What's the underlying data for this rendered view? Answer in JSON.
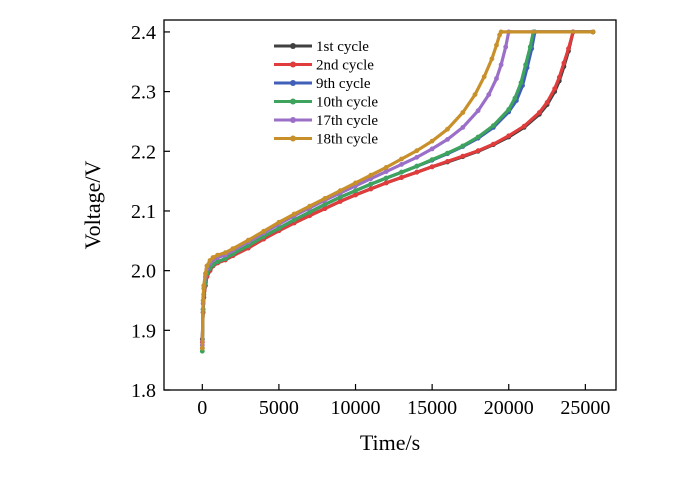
{
  "chart_data": {
    "type": "line",
    "title": "",
    "xlabel": "Time/s",
    "ylabel": "Voltage/V",
    "xlim": [
      -2500,
      27000
    ],
    "ylim": [
      1.8,
      2.42
    ],
    "xticks": [
      0,
      5000,
      10000,
      15000,
      20000,
      25000
    ],
    "xtick_labels": [
      "0",
      "5000",
      "10000",
      "15000",
      "20000",
      "25000"
    ],
    "yticks": [
      1.8,
      1.9,
      2.0,
      2.1,
      2.2,
      2.3,
      2.4
    ],
    "ytick_labels": [
      "1.8",
      "1.9",
      "2.0",
      "2.1",
      "2.2",
      "2.3",
      "2.4"
    ],
    "grid": false,
    "legend_position": "top-center",
    "series": [
      {
        "name": "1st cycle",
        "color": "#404040",
        "x": [
          0,
          50,
          100,
          200,
          300,
          500,
          700,
          1000,
          1500,
          2000,
          3000,
          4000,
          5000,
          6000,
          7000,
          8000,
          9000,
          10000,
          11000,
          12000,
          13000,
          14000,
          15000,
          16000,
          17000,
          18000,
          19000,
          20000,
          21000,
          22000,
          22500,
          23000,
          23300,
          23600,
          23900,
          24200,
          25500
        ],
        "y": [
          1.885,
          1.93,
          1.955,
          1.975,
          1.99,
          2.0,
          2.008,
          2.013,
          2.018,
          2.025,
          2.038,
          2.053,
          2.067,
          2.08,
          2.092,
          2.104,
          2.116,
          2.127,
          2.137,
          2.147,
          2.156,
          2.165,
          2.174,
          2.182,
          2.191,
          2.2,
          2.211,
          2.224,
          2.24,
          2.262,
          2.278,
          2.3,
          2.318,
          2.342,
          2.368,
          2.4,
          2.4
        ]
      },
      {
        "name": "2nd cycle",
        "color": "#e03c3c",
        "x": [
          0,
          50,
          100,
          200,
          300,
          500,
          700,
          1000,
          1500,
          2000,
          3000,
          4000,
          5000,
          6000,
          7000,
          8000,
          9000,
          10000,
          11000,
          12000,
          13000,
          14000,
          15000,
          16000,
          17000,
          18000,
          19000,
          20000,
          21000,
          22000,
          22500,
          23000,
          23300,
          23600,
          23900,
          24200,
          25500
        ],
        "y": [
          1.88,
          1.93,
          1.955,
          1.975,
          1.99,
          2.0,
          2.008,
          2.013,
          2.018,
          2.025,
          2.038,
          2.053,
          2.067,
          2.08,
          2.092,
          2.104,
          2.116,
          2.127,
          2.137,
          2.147,
          2.156,
          2.165,
          2.174,
          2.183,
          2.192,
          2.201,
          2.212,
          2.226,
          2.242,
          2.265,
          2.282,
          2.305,
          2.324,
          2.348,
          2.372,
          2.4,
          2.4
        ]
      },
      {
        "name": "9th cycle",
        "color": "#3f5fb8",
        "x": [
          0,
          50,
          100,
          200,
          300,
          500,
          700,
          1000,
          1500,
          2000,
          3000,
          4000,
          5000,
          6000,
          7000,
          8000,
          9000,
          10000,
          11000,
          12000,
          13000,
          14000,
          15000,
          16000,
          17000,
          18000,
          19000,
          20000,
          20500,
          20900,
          21200,
          21500,
          21700,
          25500
        ],
        "y": [
          1.87,
          1.935,
          1.96,
          1.98,
          1.995,
          2.004,
          2.01,
          2.015,
          2.02,
          2.028,
          2.042,
          2.057,
          2.071,
          2.085,
          2.098,
          2.111,
          2.123,
          2.134,
          2.145,
          2.155,
          2.165,
          2.175,
          2.185,
          2.196,
          2.208,
          2.222,
          2.24,
          2.266,
          2.285,
          2.31,
          2.34,
          2.372,
          2.4,
          2.4
        ]
      },
      {
        "name": "10th cycle",
        "color": "#3da35d",
        "x": [
          0,
          50,
          100,
          200,
          300,
          500,
          700,
          1000,
          1500,
          2000,
          3000,
          4000,
          5000,
          6000,
          7000,
          8000,
          9000,
          10000,
          11000,
          12000,
          13000,
          14000,
          15000,
          16000,
          17000,
          18000,
          19000,
          20000,
          20400,
          20800,
          21100,
          21400,
          21600,
          25500
        ],
        "y": [
          1.865,
          1.935,
          1.96,
          1.98,
          1.995,
          2.004,
          2.01,
          2.015,
          2.02,
          2.028,
          2.042,
          2.057,
          2.071,
          2.085,
          2.098,
          2.111,
          2.123,
          2.134,
          2.145,
          2.155,
          2.165,
          2.175,
          2.186,
          2.197,
          2.209,
          2.224,
          2.243,
          2.27,
          2.289,
          2.315,
          2.345,
          2.375,
          2.4,
          2.4
        ]
      },
      {
        "name": "17th cycle",
        "color": "#9b6fc8",
        "x": [
          0,
          50,
          100,
          200,
          300,
          500,
          700,
          1000,
          1500,
          2000,
          3000,
          4000,
          5000,
          6000,
          7000,
          8000,
          9000,
          10000,
          11000,
          12000,
          13000,
          14000,
          15000,
          16000,
          17000,
          18000,
          18700,
          19200,
          19500,
          19800,
          20000,
          25500
        ],
        "y": [
          1.875,
          1.945,
          1.97,
          1.99,
          2.003,
          2.012,
          2.018,
          2.022,
          2.026,
          2.034,
          2.048,
          2.063,
          2.078,
          2.092,
          2.105,
          2.118,
          2.13,
          2.142,
          2.154,
          2.166,
          2.178,
          2.19,
          2.204,
          2.22,
          2.24,
          2.268,
          2.295,
          2.322,
          2.345,
          2.375,
          2.4,
          2.4
        ]
      },
      {
        "name": "18th cycle",
        "color": "#c8902a",
        "x": [
          0,
          50,
          100,
          200,
          300,
          500,
          700,
          1000,
          1500,
          2000,
          3000,
          4000,
          5000,
          6000,
          7000,
          8000,
          9000,
          10000,
          11000,
          12000,
          13000,
          14000,
          15000,
          16000,
          17000,
          17800,
          18400,
          18900,
          19200,
          19400,
          19500,
          25500
        ],
        "y": [
          1.87,
          1.95,
          1.975,
          1.995,
          2.008,
          2.017,
          2.022,
          2.026,
          2.03,
          2.037,
          2.051,
          2.066,
          2.081,
          2.095,
          2.108,
          2.121,
          2.134,
          2.147,
          2.16,
          2.173,
          2.187,
          2.201,
          2.217,
          2.237,
          2.265,
          2.295,
          2.325,
          2.355,
          2.378,
          2.395,
          2.4,
          2.4
        ]
      }
    ]
  }
}
